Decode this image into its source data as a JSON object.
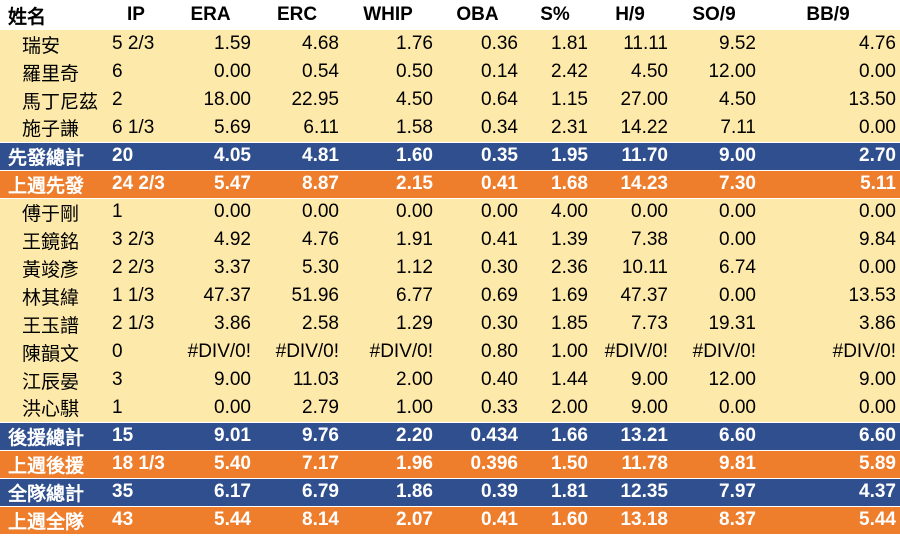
{
  "header": [
    "姓名",
    "IP",
    "ERA",
    "ERC",
    "WHIP",
    "OBA",
    "S%",
    "H/9",
    "SO/9",
    "BB/9"
  ],
  "rows": [
    {
      "type": "player",
      "cells": [
        "瑞安",
        "5 2/3",
        "1.59",
        "4.68",
        "1.76",
        "0.36",
        "1.81",
        "11.11",
        "9.52",
        "4.76"
      ]
    },
    {
      "type": "player",
      "cells": [
        "羅里奇",
        "6",
        "0.00",
        "0.54",
        "0.50",
        "0.14",
        "2.42",
        "4.50",
        "12.00",
        "0.00"
      ]
    },
    {
      "type": "player",
      "cells": [
        "馬丁尼茲",
        "2",
        "18.00",
        "22.95",
        "4.50",
        "0.64",
        "1.15",
        "27.00",
        "4.50",
        "13.50"
      ]
    },
    {
      "type": "player",
      "cells": [
        "施子謙",
        "6 1/3",
        "5.69",
        "6.11",
        "1.58",
        "0.34",
        "2.31",
        "14.22",
        "7.11",
        "0.00"
      ]
    },
    {
      "type": "total",
      "cells": [
        "先發總計",
        "20",
        "4.05",
        "4.81",
        "1.60",
        "0.35",
        "1.95",
        "11.70",
        "9.00",
        "2.70"
      ]
    },
    {
      "type": "lastweek",
      "cells": [
        "上週先發",
        "24 2/3",
        "5.47",
        "8.87",
        "2.15",
        "0.41",
        "1.68",
        "14.23",
        "7.30",
        "5.11"
      ]
    },
    {
      "type": "player",
      "cells": [
        "傅于剛",
        "1",
        "0.00",
        "0.00",
        "0.00",
        "0.00",
        "4.00",
        "0.00",
        "0.00",
        "0.00"
      ]
    },
    {
      "type": "player",
      "cells": [
        "王鏡銘",
        "3 2/3",
        "4.92",
        "4.76",
        "1.91",
        "0.41",
        "1.39",
        "7.38",
        "0.00",
        "9.84"
      ]
    },
    {
      "type": "player",
      "cells": [
        "黃竣彥",
        "2 2/3",
        "3.37",
        "5.30",
        "1.12",
        "0.30",
        "2.36",
        "10.11",
        "6.74",
        "0.00"
      ]
    },
    {
      "type": "player",
      "cells": [
        "林其緯",
        "1 1/3",
        "47.37",
        "51.96",
        "6.77",
        "0.69",
        "1.69",
        "47.37",
        "0.00",
        "13.53"
      ]
    },
    {
      "type": "player",
      "cells": [
        "王玉譜",
        "2 1/3",
        "3.86",
        "2.58",
        "1.29",
        "0.30",
        "1.85",
        "7.73",
        "19.31",
        "3.86"
      ]
    },
    {
      "type": "player",
      "cells": [
        "陳韻文",
        "0",
        "#DIV/0!",
        "#DIV/0!",
        "#DIV/0!",
        "0.80",
        "1.00",
        "#DIV/0!",
        "#DIV/0!",
        "#DIV/0!"
      ]
    },
    {
      "type": "player",
      "cells": [
        "江辰晏",
        "3",
        "9.00",
        "11.03",
        "2.00",
        "0.40",
        "1.44",
        "9.00",
        "12.00",
        "9.00"
      ]
    },
    {
      "type": "player",
      "cells": [
        "洪心騏",
        "1",
        "0.00",
        "2.79",
        "1.00",
        "0.33",
        "2.00",
        "9.00",
        "0.00",
        "0.00"
      ]
    },
    {
      "type": "total",
      "cells": [
        "後援總計",
        "15",
        "9.01",
        "9.76",
        "2.20",
        "0.434",
        "1.66",
        "13.21",
        "6.60",
        "6.60"
      ]
    },
    {
      "type": "lastweek",
      "cells": [
        "上週後援",
        "18 1/3",
        "5.40",
        "7.17",
        "1.96",
        "0.396",
        "1.50",
        "11.78",
        "9.81",
        "5.89"
      ]
    },
    {
      "type": "total",
      "cells": [
        "全隊總計",
        "35",
        "6.17",
        "6.79",
        "1.86",
        "0.39",
        "1.81",
        "12.35",
        "7.97",
        "4.37"
      ]
    },
    {
      "type": "lastweek",
      "cells": [
        "上週全隊",
        "43",
        "5.44",
        "8.14",
        "2.07",
        "0.41",
        "1.60",
        "13.18",
        "8.37",
        "5.44"
      ]
    }
  ],
  "colors": {
    "player_bg": "#fde9a9",
    "total_bg": "#2f4f8f",
    "lastweek_bg": "#ee7d2c"
  }
}
